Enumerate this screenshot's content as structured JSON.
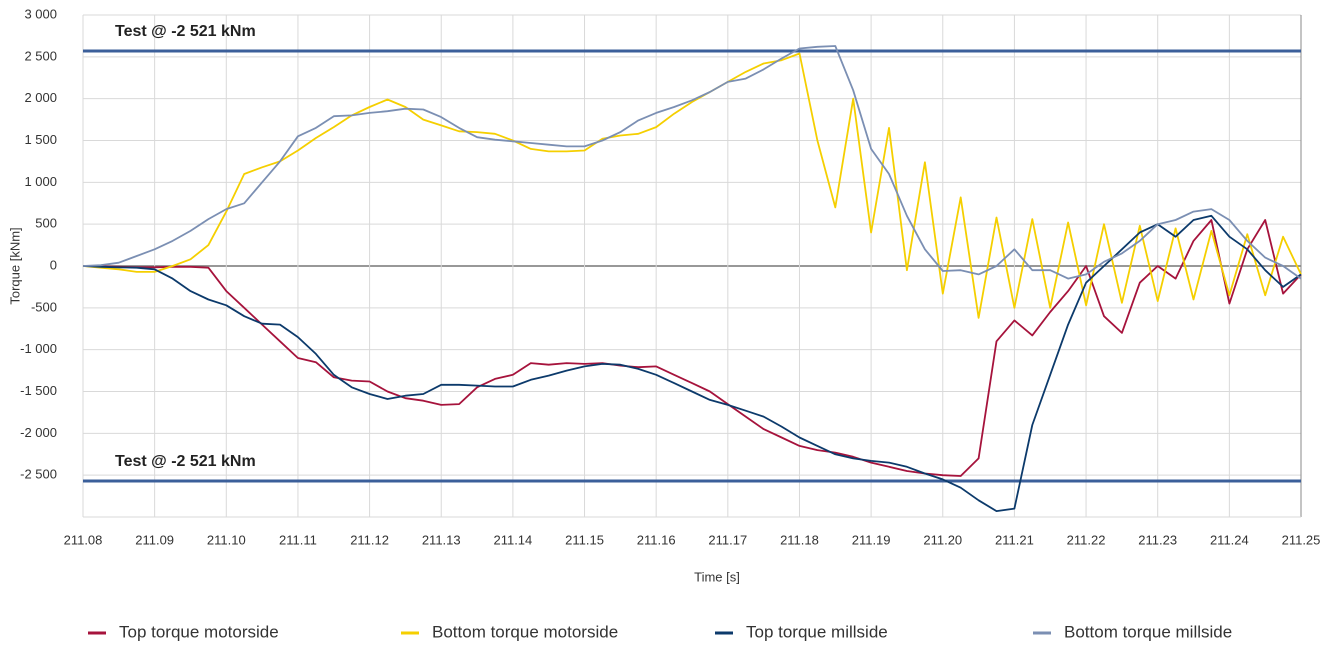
{
  "chart_data": {
    "type": "line",
    "xlabel": "Time [s]",
    "ylabel": "Torque [kNm]",
    "x": [
      211.08,
      211.0825,
      211.085,
      211.0875,
      211.09,
      211.0925,
      211.095,
      211.0975,
      211.1,
      211.1025,
      211.105,
      211.1075,
      211.11,
      211.1125,
      211.115,
      211.1175,
      211.12,
      211.1225,
      211.125,
      211.1275,
      211.13,
      211.1325,
      211.135,
      211.1375,
      211.14,
      211.1425,
      211.145,
      211.1475,
      211.15,
      211.1525,
      211.155,
      211.1575,
      211.16,
      211.1625,
      211.165,
      211.1675,
      211.17,
      211.1725,
      211.175,
      211.1775,
      211.18,
      211.1825,
      211.185,
      211.1875,
      211.19,
      211.1925,
      211.195,
      211.1975,
      211.2,
      211.2025,
      211.205,
      211.2075,
      211.21,
      211.2125,
      211.215,
      211.2175,
      211.22,
      211.2225,
      211.225,
      211.2275,
      211.23,
      211.2325,
      211.235,
      211.2375,
      211.24,
      211.2425,
      211.245,
      211.2475,
      211.25
    ],
    "series": [
      {
        "name": "Top torque motorside",
        "color": "#a6133c",
        "values": [
          0,
          -5,
          -10,
          -15,
          -15,
          -10,
          -10,
          -20,
          -300,
          -500,
          -700,
          -900,
          -1100,
          -1150,
          -1330,
          -1370,
          -1380,
          -1500,
          -1580,
          -1610,
          -1660,
          -1650,
          -1450,
          -1350,
          -1300,
          -1160,
          -1180,
          -1160,
          -1170,
          -1160,
          -1190,
          -1210,
          -1200,
          -1300,
          -1400,
          -1500,
          -1650,
          -1800,
          -1950,
          -2050,
          -2150,
          -2200,
          -2230,
          -2280,
          -2350,
          -2400,
          -2450,
          -2480,
          -2500,
          -2510,
          -2300,
          -900,
          -650,
          -830,
          -550,
          -300,
          0,
          -600,
          -800,
          -200,
          0,
          -150,
          300,
          550,
          -450,
          200,
          550,
          -330,
          -100
        ]
      },
      {
        "name": "Bottom torque motorside",
        "color": "#f5cf00",
        "values": [
          0,
          -20,
          -40,
          -70,
          -70,
          0,
          80,
          250,
          650,
          1100,
          1180,
          1250,
          1380,
          1530,
          1660,
          1800,
          1900,
          1990,
          1900,
          1750,
          1680,
          1610,
          1600,
          1580,
          1500,
          1400,
          1370,
          1370,
          1380,
          1520,
          1560,
          1580,
          1660,
          1820,
          1960,
          2080,
          2200,
          2320,
          2420,
          2460,
          2540,
          1500,
          700,
          2000,
          400,
          1650,
          -50,
          1240,
          -330,
          820,
          -620,
          580,
          -500,
          560,
          -500,
          520,
          -470,
          500,
          -440,
          480,
          -420,
          450,
          -400,
          420,
          -350,
          380,
          -350,
          350,
          -100
        ]
      },
      {
        "name": "Top torque millside",
        "color": "#0c3a6b",
        "values": [
          0,
          -10,
          -15,
          -20,
          -40,
          -150,
          -300,
          -400,
          -470,
          -600,
          -690,
          -700,
          -850,
          -1050,
          -1300,
          -1450,
          -1530,
          -1590,
          -1550,
          -1530,
          -1420,
          -1420,
          -1430,
          -1440,
          -1440,
          -1360,
          -1310,
          -1250,
          -1200,
          -1170,
          -1180,
          -1230,
          -1300,
          -1400,
          -1500,
          -1600,
          -1660,
          -1730,
          -1800,
          -1920,
          -2050,
          -2150,
          -2250,
          -2300,
          -2330,
          -2350,
          -2400,
          -2480,
          -2550,
          -2650,
          -2800,
          -2930,
          -2900,
          -1900,
          -1300,
          -700,
          -200,
          0,
          200,
          400,
          500,
          350,
          550,
          600,
          350,
          200,
          -50,
          -250,
          -100
        ]
      },
      {
        "name": "Bottom torque millside",
        "color": "#7b8fb3",
        "values": [
          0,
          10,
          40,
          120,
          200,
          300,
          420,
          560,
          680,
          750,
          1000,
          1250,
          1550,
          1650,
          1790,
          1800,
          1830,
          1850,
          1880,
          1870,
          1780,
          1650,
          1540,
          1510,
          1490,
          1470,
          1450,
          1430,
          1430,
          1500,
          1600,
          1740,
          1830,
          1900,
          1980,
          2080,
          2200,
          2240,
          2350,
          2480,
          2600,
          2620,
          2630,
          2100,
          1400,
          1100,
          600,
          200,
          -60,
          -50,
          -100,
          0,
          200,
          -50,
          -50,
          -150,
          -100,
          50,
          150,
          300,
          500,
          550,
          650,
          680,
          550,
          300,
          100,
          0,
          -150
        ]
      }
    ],
    "reference_lines": [
      {
        "value": 2570,
        "label": "Test @ -2 521 kNm",
        "color": "#3b5f9a"
      },
      {
        "value": -2570,
        "label": "Test @ -2 521 kNm",
        "color": "#3b5f9a"
      }
    ],
    "xlim": [
      211.08,
      211.25
    ],
    "xticks": [
      211.08,
      211.09,
      {
        "value": 211.1,
        "label": "211.10"
      },
      211.11,
      211.12,
      211.13,
      211.14,
      211.15,
      211.16,
      211.17,
      211.18,
      211.19,
      {
        "value": 211.2,
        "label": "211.20"
      },
      211.21,
      211.22,
      211.23,
      211.24,
      211.25
    ],
    "ylim": [
      -3000,
      3000
    ],
    "yticks": [
      {
        "value": -2500,
        "label": "-2 500"
      },
      {
        "value": -2000,
        "label": "-2 000"
      },
      {
        "value": -1500,
        "label": "-1 500"
      },
      {
        "value": -1000,
        "label": "-1 000"
      },
      -500,
      0,
      500,
      {
        "value": 1000,
        "label": "1 000"
      },
      {
        "value": 1500,
        "label": "1 500"
      },
      {
        "value": 2000,
        "label": "2 000"
      },
      {
        "value": 2500,
        "label": "2 500"
      },
      {
        "value": 3000,
        "label": "3 000"
      }
    ],
    "grid": true,
    "legend": "bottom"
  }
}
